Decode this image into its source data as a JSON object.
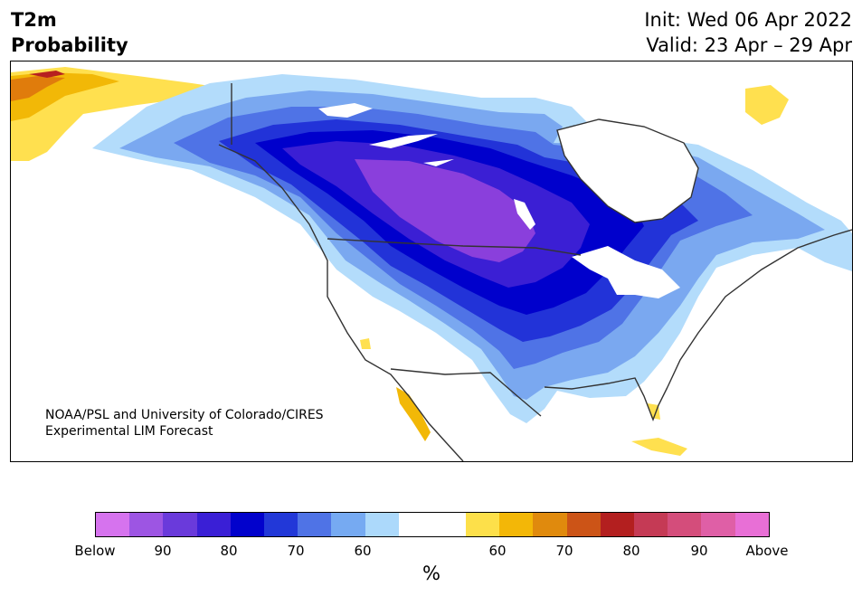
{
  "header": {
    "title_line1": "T2m",
    "title_line2": "Probability",
    "init_line": "Init: Wed 06 Apr 2022",
    "valid_line": "Valid: 23 Apr – 29 Apr"
  },
  "map": {
    "credit_line1": "NOAA/PSL and University of Colorado/CIRES",
    "credit_line2": "Experimental LIM Forecast",
    "colors": {
      "below_90": "#8a3fdc",
      "below_80": "#3b1fd4",
      "below_70": "#0000cc",
      "below_65": "#2233d8",
      "below_60": "#4f73e6",
      "below_55": "#7aa8f0",
      "below_50": "#b3dcfb",
      "above_55": "#ffe04f",
      "above_60": "#f2b807",
      "above_70": "#e07c0c",
      "above_80": "#b72020",
      "coast": "#333333",
      "lake": "#ffffff"
    }
  },
  "colorbar": {
    "colors": [
      "#d673ee",
      "#9d55e3",
      "#6a3adb",
      "#3a1fd6",
      "#0202cc",
      "#2238d8",
      "#4f73e6",
      "#76aaf2",
      "#acd9fb",
      "#ffffff",
      "#ffffff",
      "#fde04a",
      "#f3b707",
      "#e08a0d",
      "#cc5417",
      "#b31f1f",
      "#c53a55",
      "#d44d7b",
      "#df5fa6",
      "#e86fd6"
    ],
    "tick_labels": [
      "Below",
      "90",
      "80",
      "70",
      "60",
      "60",
      "70",
      "80",
      "90",
      "Above"
    ],
    "unit": "%"
  }
}
